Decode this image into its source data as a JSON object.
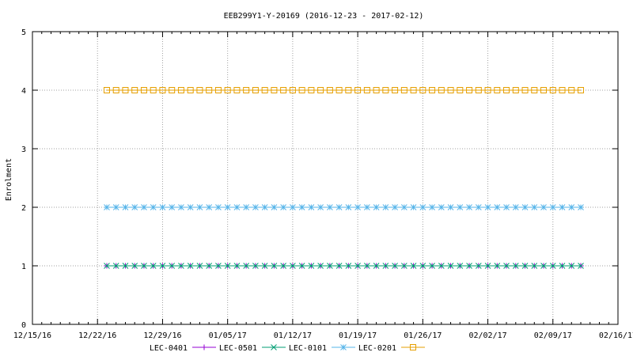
{
  "chart_data": {
    "type": "line",
    "title": "EEB299Y1-Y-20169 (2016-12-23 - 2017-02-12)",
    "xlabel": "",
    "ylabel": "Enrolment",
    "xlim": [
      "2016-12-15",
      "2017-02-16"
    ],
    "ylim": [
      0,
      5
    ],
    "x_ticks": [
      "12/15/16",
      "12/22/16",
      "12/29/16",
      "01/05/17",
      "01/12/17",
      "01/19/17",
      "01/26/17",
      "02/02/17",
      "02/09/17",
      "02/16/17"
    ],
    "y_ticks": [
      "0",
      "1",
      "2",
      "3",
      "4",
      "5"
    ],
    "grid": true,
    "legend_position": "bottom",
    "x_start": "2016-12-23",
    "x_end": "2017-02-12",
    "series": [
      {
        "name": "LEC-0401",
        "marker": "plus",
        "color": "#9400d3",
        "value": 1
      },
      {
        "name": "LEC-0501",
        "marker": "cross",
        "color": "#009e73",
        "value": 1
      },
      {
        "name": "LEC-0101",
        "marker": "star",
        "color": "#56b4e9",
        "value": 2
      },
      {
        "name": "LEC-0201",
        "marker": "square",
        "color": "#e69f00",
        "value": 4
      }
    ]
  }
}
